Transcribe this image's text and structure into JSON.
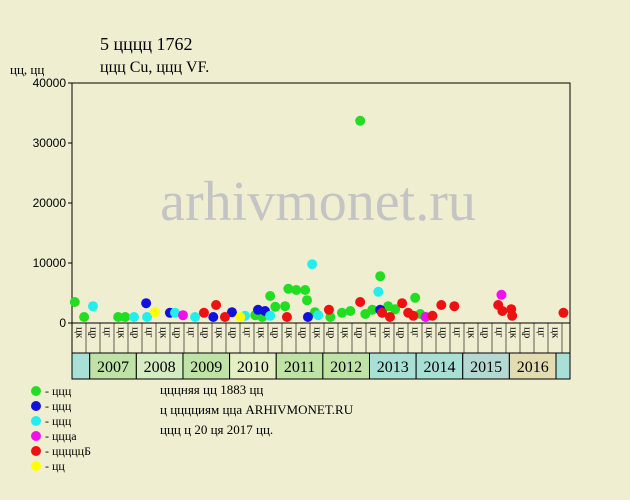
{
  "chart_data": {
    "type": "scatter",
    "title": "5 цццц 1762",
    "subtitle": "ццц Cu, ццц VF.",
    "y_label": "цц, цц",
    "watermark": "arhivmonet.ru",
    "notes": [
      "цццняя цц 1883 цц",
      "ц цццциям цца ARHIVMONET.RU",
      "ццц ц 20 ця 2017 цц."
    ],
    "xlim": [
      2006.62,
      2017.3
    ],
    "ylim": [
      0,
      40000
    ],
    "yticks": [
      0,
      10000,
      20000,
      30000,
      40000
    ],
    "years": [
      "2007",
      "2008",
      "2009",
      "2010",
      "2011",
      "2012",
      "2013",
      "2014",
      "2015",
      "2016"
    ],
    "year_colors": [
      "#bfe3a6",
      "#d6ecc2",
      "#bfe3a6",
      "#e4f0c4",
      "#bfe3a6",
      "#bfe3a6",
      "#a9e0d6",
      "#a9e0d6",
      "#b3d9d2",
      "#e2dcb0"
    ],
    "column_labels": [
      "цк",
      "цр",
      "цг",
      "цк",
      "цр",
      "цг",
      "цк",
      "цр",
      "цг",
      "цр",
      "цк",
      "цр",
      "цг",
      "цк",
      "цр",
      "цк",
      "цр",
      "цк",
      "цр",
      "цк",
      "цр",
      "цг",
      "цк",
      "цр",
      "цг",
      "цк",
      "цр",
      "цг",
      "цк",
      "цр",
      "цг",
      "цк",
      "цр",
      "цг",
      "цк"
    ],
    "series": [
      {
        "name": "- ццц",
        "color": "#22dd22",
        "x": [
          2006.68,
          2006.88,
          2007.61,
          2007.76,
          2010.55,
          2010.7,
          2010.87,
          2010.98,
          2011.19,
          2011.26,
          2011.43,
          2011.62,
          2011.66,
          2011.83,
          2012.16,
          2012.41,
          2012.59,
          2012.8,
          2012.91,
          2013.06,
          2013.23,
          2013.4,
          2013.55,
          2013.98,
          2014.09
        ],
        "values": [
          3500,
          1000,
          1000,
          1000,
          1300,
          1000,
          4500,
          2700,
          2800,
          5700,
          5500,
          5500,
          3800,
          1800,
          1000,
          1700,
          2000,
          33700,
          1500,
          2200,
          7800,
          2800,
          2300,
          4200,
          1500
        ]
      },
      {
        "name": "- ццц",
        "color": "#1111dd",
        "x": [
          2008.21,
          2008.72,
          2009.65,
          2010.05,
          2010.61,
          2010.76,
          2011.68,
          2013.23
        ],
        "values": [
          3300,
          1700,
          1000,
          1800,
          2200,
          2000,
          1000,
          2200
        ]
      },
      {
        "name": "- ццц",
        "color": "#22eeee",
        "x": [
          2007.07,
          2007.95,
          2008.23,
          2008.83,
          2009.26,
          2010.33,
          2010.87,
          2011.77,
          2011.9,
          2013.19,
          2014.22
        ],
        "values": [
          2800,
          1000,
          1000,
          1700,
          1000,
          1200,
          1200,
          9800,
          1300,
          5200,
          1000
        ]
      },
      {
        "name": "- ццца",
        "color": "#ee11ee",
        "x": [
          2009.0,
          2014.2,
          2015.83
        ],
        "values": [
          1300,
          1000,
          4700
        ]
      },
      {
        "name": "- цццццБ",
        "color": "#ee1111",
        "x": [
          2009.45,
          2009.71,
          2009.9,
          2011.23,
          2012.13,
          2012.8,
          2013.27,
          2013.44,
          2013.7,
          2013.83,
          2013.94,
          2014.35,
          2014.54,
          2014.82,
          2015.76,
          2015.85,
          2016.04,
          2016.06,
          2017.16
        ],
        "values": [
          1700,
          3000,
          1000,
          1000,
          2200,
          3500,
          1700,
          1000,
          3300,
          1700,
          1200,
          1200,
          3000,
          2800,
          3000,
          2000,
          2300,
          1200,
          1700
        ]
      },
      {
        "name": "- цц",
        "color": "#ffff00",
        "x": [
          2008.4,
          2010.23
        ],
        "values": [
          1800,
          1000
        ]
      }
    ]
  }
}
